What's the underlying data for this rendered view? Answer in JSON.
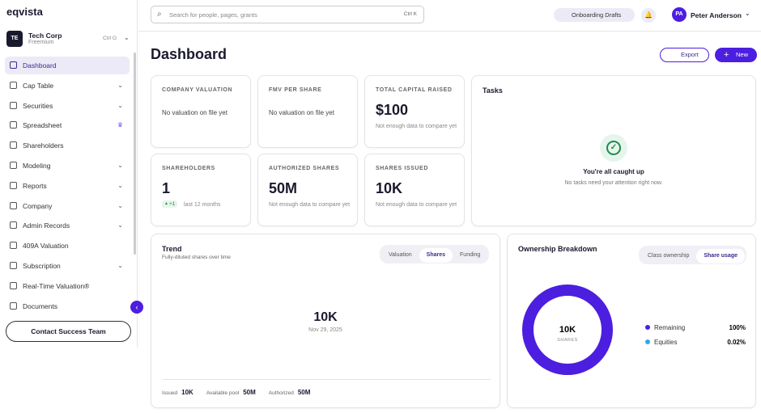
{
  "brand": "eqvista",
  "search": {
    "placeholder": "Search for people, pages, grants",
    "shortcut": "Ctrl K"
  },
  "header": {
    "drafts": "Onboarding Drafts",
    "user_initials": "PA",
    "user_name": "Peter Anderson"
  },
  "org": {
    "initials": "TE",
    "name": "Tech Corp",
    "plan": "Freemium",
    "shortcut": "Ctrl O"
  },
  "nav": [
    "Dashboard",
    "Cap Table",
    "Securities",
    "Spreadsheet",
    "Shareholders",
    "Modeling",
    "Reports",
    "Company",
    "Admin Records",
    "409A Valuation",
    "Subscription",
    "Real-Time Valuation®",
    "Documents"
  ],
  "contact": "Contact Success Team",
  "page_title": "Dashboard",
  "actions": {
    "export": "Export",
    "new": "New"
  },
  "stats": [
    {
      "label": "COMPANY VALUATION",
      "note": "No valuation on file yet"
    },
    {
      "label": "FMV PER SHARE",
      "note": "No valuation on file yet"
    },
    {
      "label": "TOTAL CAPITAL RAISED",
      "value": "$100",
      "note": "Not enough data to compare yet"
    },
    {
      "label": "SHAREHOLDERS",
      "value": "1",
      "change": "+1",
      "note": "last 12 months"
    },
    {
      "label": "AUTHORIZED SHARES",
      "value": "50M",
      "note": "Not enough data to compare yet"
    },
    {
      "label": "SHARES ISSUED",
      "value": "10K",
      "note": "Not enough data to compare yet"
    }
  ],
  "tasks": {
    "title": "Tasks",
    "heading": "You're all caught up",
    "note": "No tasks need your attention right now."
  },
  "trend": {
    "title": "Trend",
    "subtitle": "Fully-diluted shares over time",
    "tabs": [
      "Valuation",
      "Shares",
      "Funding"
    ],
    "value": "10K",
    "date": "Nov 29, 2025",
    "footer": [
      {
        "label": "Issued",
        "value": "10K"
      },
      {
        "label": "Available pool",
        "value": "50M"
      },
      {
        "label": "Authorized",
        "value": "50M"
      }
    ]
  },
  "ownership": {
    "title": "Ownership Breakdown",
    "tabs": [
      "Class ownership",
      "Share usage"
    ]
  },
  "chart_data": {
    "type": "pie",
    "center_value": "10K",
    "center_label": "SHARES",
    "categories": [
      "Remaining",
      "Equities"
    ],
    "values": [
      100,
      0.02
    ],
    "value_labels": [
      "100%",
      "0.02%"
    ],
    "colors": [
      "#4c1ee0",
      "#2ea8e6"
    ]
  }
}
